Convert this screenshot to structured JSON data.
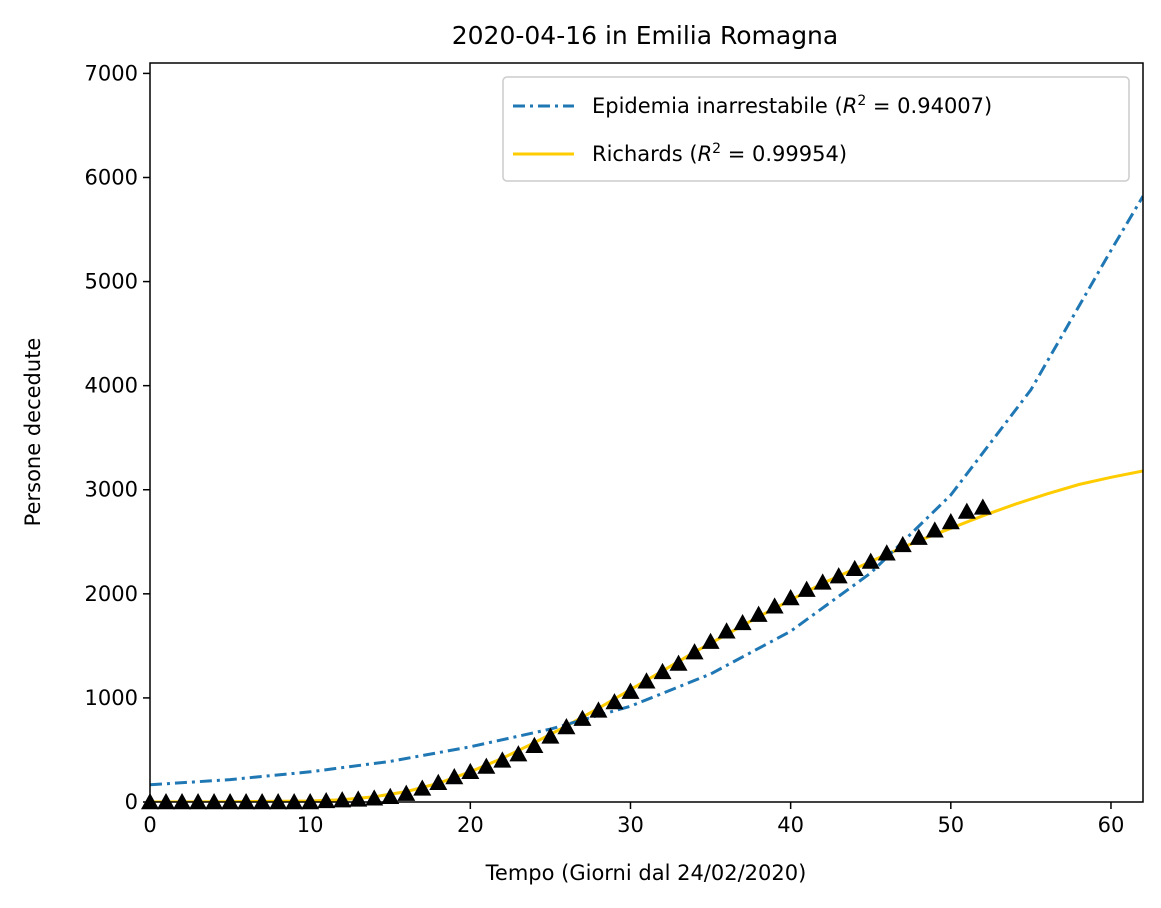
{
  "chart_data": {
    "type": "line",
    "title": "2020-04-16 in Emilia Romagna",
    "xlabel": "Tempo (Giorni dal 24/02/2020)",
    "ylabel": "Persone decedute",
    "xlim": [
      0,
      62
    ],
    "ylim": [
      0,
      7100
    ],
    "xticks": [
      0,
      10,
      20,
      30,
      40,
      50,
      60
    ],
    "yticks": [
      0,
      1000,
      2000,
      3000,
      4000,
      5000,
      6000,
      7000
    ],
    "grid": false,
    "legend_position": "top-right",
    "colors": {
      "exponential": "#1f77b4",
      "richards": "#ffcc00",
      "observed": "#000000"
    },
    "series": [
      {
        "name": "Epidemia inarrestabile ($R^2 = 0.94007$)",
        "legend": {
          "prefix": "Epidemia inarrestabile (",
          "r_symbol": "R",
          "exponent": "2",
          "value": " = 0.94007)"
        },
        "style": "dash-dot",
        "x": [
          0,
          5,
          10,
          15,
          20,
          25,
          30,
          35,
          40,
          45,
          50,
          55,
          60,
          62
        ],
        "values": [
          165,
          215,
          290,
          390,
          530,
          700,
          920,
          1230,
          1640,
          2200,
          2950,
          3960,
          5300,
          5820
        ]
      },
      {
        "name": "Richards ($R^2 = 0.99954$)",
        "legend": {
          "prefix": "Richards (",
          "r_symbol": "R",
          "exponent": "2",
          "value": " = 0.99954)"
        },
        "style": "solid",
        "x": [
          0,
          5,
          10,
          12,
          14,
          16,
          18,
          20,
          22,
          24,
          26,
          28,
          30,
          32,
          34,
          36,
          38,
          40,
          42,
          44,
          46,
          48,
          50,
          52,
          54,
          56,
          58,
          60,
          62
        ],
        "values": [
          0,
          2,
          10,
          22,
          50,
          100,
          180,
          290,
          420,
          570,
          730,
          900,
          1080,
          1260,
          1440,
          1610,
          1780,
          1940,
          2100,
          2240,
          2380,
          2510,
          2630,
          2750,
          2860,
          2960,
          3050,
          3120,
          3180
        ]
      },
      {
        "name": "observed",
        "style": "triangle-markers",
        "x": [
          0,
          1,
          2,
          3,
          4,
          5,
          6,
          7,
          8,
          9,
          10,
          11,
          12,
          13,
          14,
          15,
          16,
          17,
          18,
          19,
          20,
          21,
          22,
          23,
          24,
          25,
          26,
          27,
          28,
          29,
          30,
          31,
          32,
          33,
          34,
          35,
          36,
          37,
          38,
          39,
          40,
          41,
          42,
          43,
          44,
          45,
          46,
          47,
          48,
          49,
          50,
          51,
          52
        ],
        "values": [
          0,
          0,
          0,
          0,
          0,
          0,
          0,
          0,
          0,
          0,
          0,
          10,
          18,
          25,
          35,
          50,
          80,
          130,
          185,
          240,
          290,
          340,
          400,
          460,
          540,
          630,
          720,
          800,
          880,
          960,
          1060,
          1160,
          1250,
          1330,
          1440,
          1540,
          1640,
          1720,
          1800,
          1880,
          1960,
          2040,
          2110,
          2170,
          2240,
          2310,
          2390,
          2470,
          2540,
          2610,
          2690,
          2790,
          2830
        ]
      }
    ]
  }
}
